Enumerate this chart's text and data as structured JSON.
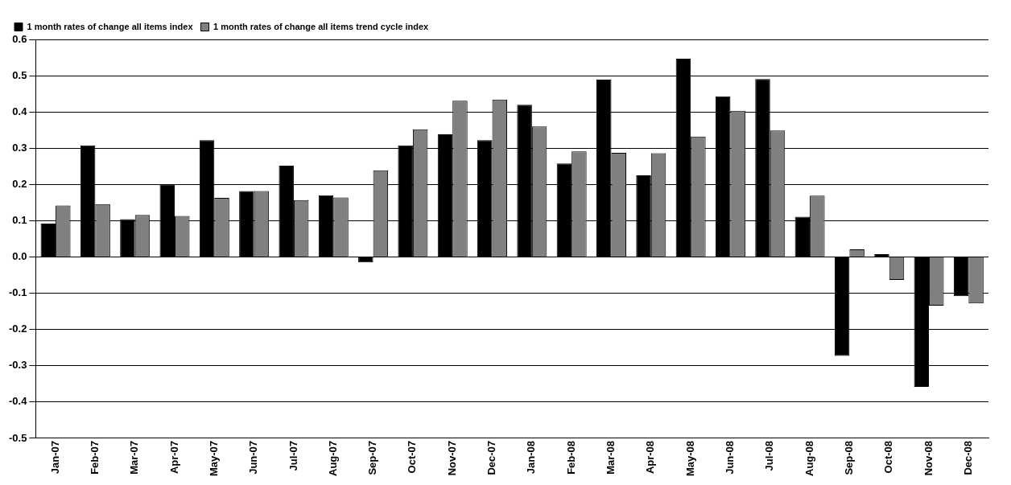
{
  "chart_data": {
    "type": "bar",
    "categories": [
      "Jan-07",
      "Feb-07",
      "Mar-07",
      "Apr-07",
      "May-07",
      "Jun-07",
      "Jul-07",
      "Aug-07",
      "Sep-07",
      "Oct-07",
      "Nov-07",
      "Dec-07",
      "Jan-08",
      "Feb-08",
      "Mar-08",
      "Apr-08",
      "May-08",
      "Jun-08",
      "Jul-08",
      "Aug-08",
      "Sep-08",
      "Oct-08",
      "Nov-08",
      "Dec-08"
    ],
    "series": [
      {
        "name": "1 month rates of change all items index",
        "color": "#000000",
        "values": [
          0.092,
          0.308,
          0.104,
          0.2,
          0.322,
          0.182,
          0.252,
          0.17,
          -0.015,
          0.308,
          0.338,
          0.322,
          0.42,
          0.258,
          0.489,
          0.225,
          0.547,
          0.443,
          0.491,
          0.111,
          -0.273,
          0.008,
          -0.358,
          -0.108
        ]
      },
      {
        "name": "1 month rates of change all items trend cycle index",
        "color": "#808080",
        "values": [
          0.142,
          0.146,
          0.116,
          0.113,
          0.163,
          0.182,
          0.157,
          0.164,
          0.239,
          0.352,
          0.431,
          0.434,
          0.36,
          0.291,
          0.287,
          0.286,
          0.332,
          0.403,
          0.349,
          0.169,
          0.021,
          -0.063,
          -0.134,
          -0.128
        ]
      }
    ],
    "ylim": [
      -0.5,
      0.6
    ],
    "yticks": [
      -0.5,
      -0.4,
      -0.3,
      -0.2,
      -0.1,
      {
        "value": 0,
        "label": "0.0"
      },
      0.1,
      0.2,
      0.3,
      0.4,
      0.5,
      0.6
    ],
    "grid": "y",
    "legend": "top left"
  }
}
